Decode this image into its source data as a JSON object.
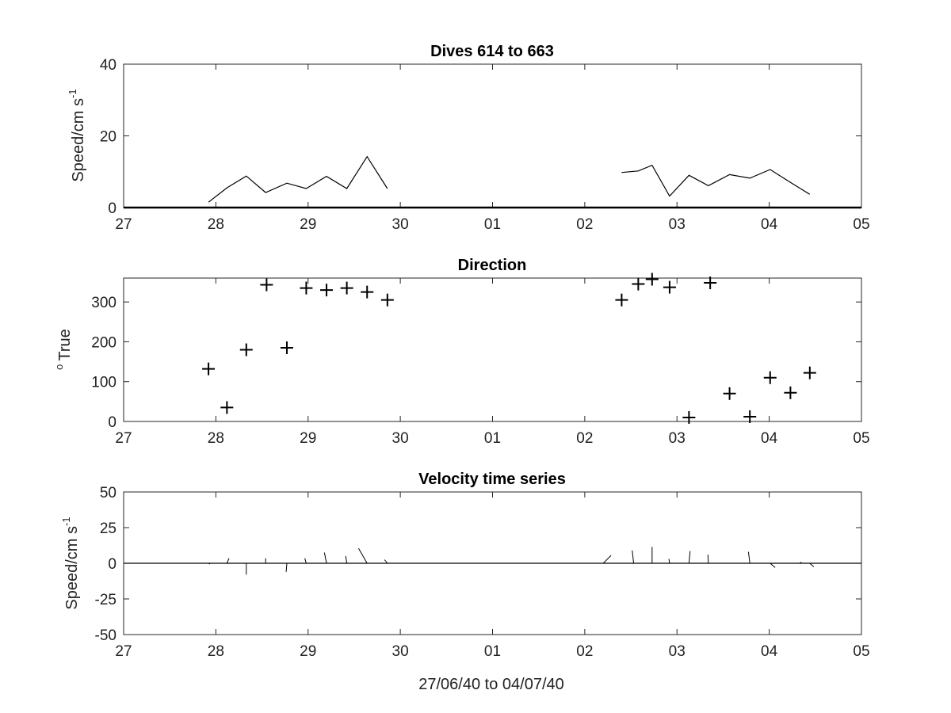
{
  "chart_data": [
    {
      "type": "line",
      "title": "Dives 614 to 663",
      "ylabel": "Speed/cm s",
      "ylabel_sup": "-1",
      "xlabel": "",
      "ylim": [
        0,
        40
      ],
      "yticks": [
        0,
        20,
        40
      ],
      "xlim": [
        27,
        35
      ],
      "x_tick_labels": [
        "27",
        "28",
        "29",
        "30",
        "01",
        "02",
        "03",
        "04",
        "05"
      ],
      "series": [
        {
          "segments": [
            [
              [
                27.92,
                1.5
              ],
              [
                28.12,
                5.5
              ],
              [
                28.33,
                8.8
              ],
              [
                28.54,
                4.2
              ],
              [
                28.77,
                6.8
              ],
              [
                28.98,
                5.3
              ],
              [
                29.2,
                8.7
              ],
              [
                29.42,
                5.3
              ],
              [
                29.64,
                14.2
              ],
              [
                29.86,
                5.3
              ]
            ],
            [
              [
                32.4,
                9.8
              ],
              [
                32.58,
                10.2
              ],
              [
                32.73,
                11.8
              ],
              [
                32.92,
                3.2
              ],
              [
                33.13,
                9.0
              ],
              [
                33.34,
                6.1
              ],
              [
                33.57,
                9.2
              ],
              [
                33.79,
                8.2
              ],
              [
                34.01,
                10.6
              ],
              [
                34.23,
                7.0
              ],
              [
                34.44,
                3.7
              ]
            ]
          ]
        }
      ]
    },
    {
      "type": "scatter",
      "title": "Direction",
      "ylabel": "True",
      "ylabel_sup": "o",
      "xlabel": "",
      "ylim": [
        0,
        360
      ],
      "yticks": [
        0,
        100,
        200,
        300
      ],
      "xlim": [
        27,
        35
      ],
      "x_tick_labels": [
        "27",
        "28",
        "29",
        "30",
        "01",
        "02",
        "03",
        "04",
        "05"
      ],
      "marker": "+",
      "points": [
        [
          27.92,
          132
        ],
        [
          28.12,
          35
        ],
        [
          28.33,
          180
        ],
        [
          28.55,
          343
        ],
        [
          28.77,
          185
        ],
        [
          28.98,
          335
        ],
        [
          29.2,
          330
        ],
        [
          29.42,
          335
        ],
        [
          29.64,
          325
        ],
        [
          29.86,
          305
        ],
        [
          32.4,
          305
        ],
        [
          32.58,
          345
        ],
        [
          32.73,
          357
        ],
        [
          32.92,
          337
        ],
        [
          33.13,
          10
        ],
        [
          33.36,
          348
        ],
        [
          33.57,
          70
        ],
        [
          33.79,
          12
        ],
        [
          34.01,
          110
        ],
        [
          34.23,
          72
        ],
        [
          34.44,
          122
        ]
      ]
    },
    {
      "type": "line",
      "subtype": "stick",
      "title": "Velocity time series",
      "ylabel": "Speed/cm s",
      "ylabel_sup": "-1",
      "xlabel": "27/06/40 to 04/07/40",
      "ylim": [
        -50,
        50
      ],
      "yticks": [
        -50,
        -25,
        0,
        25,
        50
      ],
      "xlim": [
        27,
        35
      ],
      "x_tick_labels": [
        "27",
        "28",
        "29",
        "30",
        "01",
        "02",
        "03",
        "04",
        "05"
      ],
      "sticks": [
        [
          27.92,
          1.0,
          -0.5
        ],
        [
          28.12,
          1.5,
          3.5
        ],
        [
          28.33,
          0.0,
          -8.0
        ],
        [
          28.54,
          0.0,
          3.5
        ],
        [
          28.77,
          -0.5,
          -6.0
        ],
        [
          28.98,
          -1.0,
          3.5
        ],
        [
          29.2,
          -1.5,
          7.5
        ],
        [
          29.42,
          -0.8,
          5.0
        ],
        [
          29.64,
          -6.0,
          10.5
        ],
        [
          29.86,
          -2.0,
          2.5
        ],
        [
          32.2,
          5.5,
          5.5
        ],
        [
          32.53,
          -1.0,
          9.0
        ],
        [
          32.73,
          0.0,
          11.5
        ],
        [
          32.92,
          -0.5,
          3.0
        ],
        [
          33.13,
          0.8,
          8.5
        ],
        [
          33.34,
          -0.3,
          6.0
        ],
        [
          33.57,
          0.0,
          0.0
        ],
        [
          33.79,
          -1.0,
          8.0
        ],
        [
          34.01,
          3.5,
          -3.0
        ],
        [
          34.23,
          0.0,
          0.0
        ],
        [
          34.33,
          1.2,
          0.8
        ],
        [
          34.44,
          2.8,
          -2.5
        ]
      ]
    }
  ]
}
